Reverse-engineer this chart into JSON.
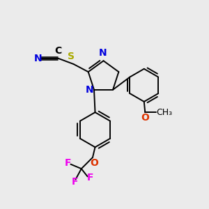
{
  "background_color": "#ebebeb",
  "figsize": [
    3.0,
    3.0
  ],
  "dpi": 100,
  "atom_colors": {
    "C": "#000000",
    "N": "#0000dd",
    "S": "#aaaa00",
    "O": "#dd3300",
    "F": "#ee00ee"
  },
  "bond_color": "#000000",
  "bond_width": 1.4,
  "font_size_atoms": 10,
  "font_size_small": 9
}
